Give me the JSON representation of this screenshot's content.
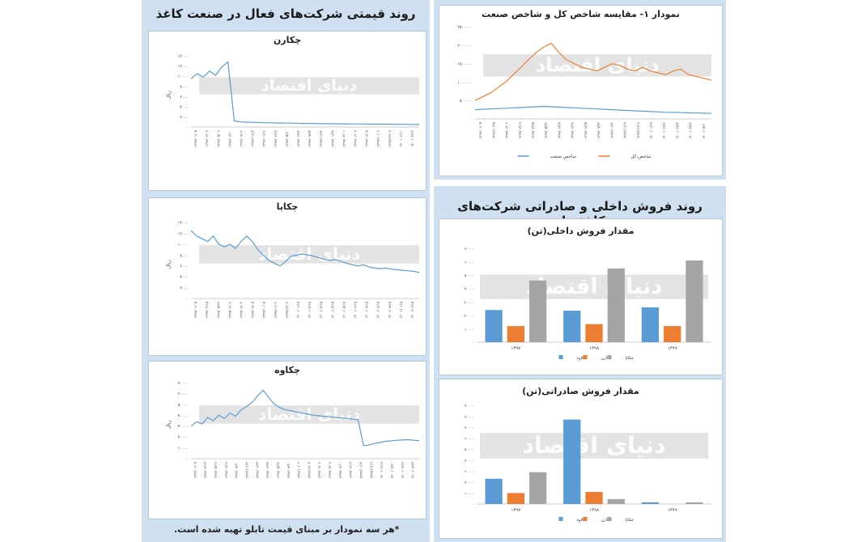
{
  "left_panel": {
    "title": "روند قیمتی شرکت‌های فعال در صنعت کاغذ",
    "footnote": "*هر سه نمودار بر مبنای قیمت تابلو تهیه شده است."
  },
  "right_top": {
    "title": "نمودار ۱- مقایسه شاخص کل و شاخص صنعت"
  },
  "right_bottom": {
    "title": "روند فروش داخلی و صادراتی شرکت‌های کاغذساز"
  },
  "watermark": "دنیای اقتصاد",
  "colors": {
    "blue": "#5b9bd5",
    "orange": "#ed7d31",
    "gray": "#a5a5a5",
    "panel": "#cfe0f1"
  },
  "chart_data": [
    {
      "id": "chekaran",
      "type": "line",
      "title": "چکارن",
      "ylabel": "ریال",
      "ylim": [
        0,
        14000
      ],
      "yticks": [
        "۰",
        "۲۰۰۰",
        "۴۰۰۰",
        "۶۰۰۰",
        "۸۰۰۰",
        "۱۰۰۰۰",
        "۱۲۰۰۰",
        "۱۴۰۰۰"
      ],
      "xticks": [
        "۱۳۹۷/۰۱/۰۵",
        "۱۳۹۷/۰۳/۰۶",
        "۱۳۹۷/۰۵/۰۸",
        "۱۳۹۷/۰۷/۱۰",
        "۱۳۹۷/۰۹/۱۲",
        "۱۳۹۷/۱۱/۱۴",
        "۱۳۹۸/۰۱/۱۶",
        "۱۳۹۸/۰۳/۱۸",
        "۱۳۹۸/۰۵/۲۰",
        "۱۳۹۸/۰۷/۲۲",
        "۱۳۹۸/۰۹/۲۴",
        "۱۳۹۸/۱۱/۲۶",
        "۱۳۹۹/۰۱/۲۸",
        "۱۳۹۹/۰۴/۰۱",
        "۱۳۹۹/۰۶/۰۳",
        "۱۳۹۹/۰۸/۰۵",
        "۱۳۹۹/۱۰/۰۷",
        "۱۳۹۹/۱۲/۰۹",
        "۱۴۰۰/۰۲/۱۱",
        "۱۴۰۰/۰۴/۱۳"
      ],
      "series": [
        {
          "color": "#5b9bd5",
          "values": [
            9500,
            10500,
            9800,
            11000,
            10200,
            11800,
            12800,
            1200,
            1000,
            950,
            900,
            880,
            850,
            820,
            800,
            780,
            760,
            740,
            720,
            700,
            680,
            660,
            650,
            640,
            630,
            620,
            610,
            600,
            590,
            580,
            570,
            560,
            550,
            540,
            530,
            520,
            510,
            500
          ]
        }
      ]
    },
    {
      "id": "chekapa",
      "type": "line",
      "title": "چکاپا",
      "ylabel": "ریال",
      "ylim": [
        0,
        14000
      ],
      "yticks": [
        "۰",
        "۲۰۰۰",
        "۴۰۰۰",
        "۶۰۰۰",
        "۸۰۰۰",
        "۱۰۰۰۰",
        "۱۲۰۰۰",
        "۱۴۰۰۰"
      ],
      "xticks": [
        "۱۳۹۹/۰۱/۰۵",
        "۱۳۹۹/۰۴/۱۵",
        "۱۳۹۹/۰۵/۲۳",
        "۱۳۹۹/۰۷/۰۲",
        "۱۳۹۹/۰۸/۰۴",
        "۱۳۹۹/۰۹/۰۵",
        "۱۳۹۹/۱۰/۰۵",
        "۱۳۹۹/۱۱/۰۶",
        "۱۳۹۹/۱۲/۰۶",
        "۱۴۰۰/۰۱/۱۵",
        "۱۴۰۰/۰۲/۱۵",
        "۱۴۰۰/۰۳/۱۵",
        "۱۴۰۰/۰۴/۱۵",
        "۱۴۰۰/۰۵/۱۵",
        "۱۴۰۰/۰۶/۱۵",
        "۱۴۰۰/۰۷/۱۵",
        "۱۴۰۰/۰۸/۱۵",
        "۱۴۰۰/۰۹/۱۵",
        "۱۴۰۰/۱۰/۱۵",
        "۱۴۰۰/۱۱/۱۵"
      ],
      "series": [
        {
          "color": "#5b9bd5",
          "values": [
            12500,
            11500,
            11000,
            10500,
            11500,
            10000,
            9500,
            10000,
            9200,
            10500,
            11500,
            10500,
            9000,
            8000,
            7000,
            6500,
            6000,
            6800,
            7800,
            8000,
            8200,
            8000,
            7800,
            7500,
            7200,
            7000,
            7200,
            6800,
            6500,
            6200,
            6000,
            6200,
            5800,
            5600,
            5500,
            5600,
            5400,
            5300,
            5200,
            5100,
            5000,
            4800
          ]
        }
      ]
    },
    {
      "id": "chekave",
      "type": "line",
      "title": "چکاوه",
      "ylabel": "ریال",
      "ylim": [
        0,
        70000
      ],
      "yticks": [
        "۰",
        "۱۰۰۰۰",
        "۲۰۰۰۰",
        "۳۰۰۰۰",
        "۴۰۰۰۰",
        "۵۰۰۰۰",
        "۶۰۰۰۰",
        "۷۰۰۰۰"
      ],
      "xticks": [
        "۱۳۹۷/۰۱/۰۵",
        "۱۳۹۷/۰۳/۱۴",
        "۱۳۹۷/۰۵/۱۶",
        "۱۳۹۷/۰۷/۱۸",
        "۱۳۹۷/۰۹/۲۰",
        "۱۳۹۷/۱۱/۲۲",
        "۱۳۹۸/۰۱/۲۴",
        "۱۳۹۸/۰۳/۲۶",
        "۱۳۹۸/۰۵/۲۸",
        "۱۳۹۸/۰۷/۳۰",
        "۱۳۹۸/۱۰/۰۲",
        "۱۳۹۸/۱۲/۰۴",
        "۱۳۹۹/۰۲/۰۶",
        "۱۳۹۹/۰۴/۰۸",
        "۱۳۹۹/۰۶/۱۰",
        "۱۳۹۹/۰۸/۱۲",
        "۱۳۹۹/۱۰/۱۴",
        "۱۳۹۹/۱۲/۱۶",
        "۱۴۰۰/۰۲/۱۸",
        "۱۴۰۰/۰۴/۲۰",
        "۱۴۰۰/۰۶/۲۲",
        "۱۴۰۰/۰۸/۲۴"
      ],
      "series": [
        {
          "color": "#5b9bd5",
          "values": [
            30000,
            34000,
            32000,
            38000,
            35000,
            40000,
            37000,
            42000,
            39000,
            45000,
            48000,
            52000,
            58000,
            63000,
            56000,
            50000,
            47000,
            45000,
            44000,
            43000,
            42000,
            41000,
            40000,
            39500,
            39000,
            38500,
            38000,
            37500,
            37000,
            36500,
            36000,
            12000,
            12500,
            14000,
            15000,
            16000,
            16500,
            17000,
            17200,
            17500,
            17000,
            16500
          ]
        }
      ]
    },
    {
      "id": "index-compare",
      "type": "line",
      "title": "نمودار ۱- مقایسه شاخص کل و شاخص صنعت",
      "ylim": [
        0,
        2500000
      ],
      "yticks": [
        "۰",
        "۵۰۰۰۰۰",
        "۱۰۰۰۰۰۰",
        "۱۵۰۰۰۰۰",
        "۲۰۰۰۰۰۰",
        "۲۵۰۰۰۰۰"
      ],
      "xticks": [
        "۱۳۹۸/۰۱/۰۵",
        "۱۳۹۸/۱۰/۲۵",
        "۱۳۹۹/۰۲/۰۲",
        "۱۳۹۹/۰۳/۱۹",
        "۱۳۹۹/۰۴/۲۵",
        "۱۳۹۹/۰۵/۲۲",
        "۱۳۹۹/۰۶/۲۹",
        "۱۳۹۹/۰۷/۲۷",
        "۱۳۹۹/۰۸/۲۵",
        "۱۳۹۹/۰۹/۲۳",
        "۱۳۹۹/۱۰/۲۲",
        "۱۳۹۹/۱۱/۱۹",
        "۱۳۹۹/۱۲/۱۸",
        "۱۴۰۰/۰۱/۲۹",
        "۱۴۰۰/۰۲/۲۷",
        "۱۴۰۰/۰۳/۲۴",
        "۱۴۰۰/۰۴/۲۲",
        "۱۴۰۰/۰۵/۲۰"
      ],
      "legend": [
        "شاخص صنعت",
        "شاخص کل"
      ],
      "series": [
        {
          "name": "شاخص صنعت",
          "color": "#5b9bd5",
          "values": [
            250000,
            260000,
            270000,
            280000,
            290000,
            300000,
            310000,
            320000,
            330000,
            340000,
            330000,
            320000,
            310000,
            300000,
            290000,
            280000,
            270000,
            260000,
            250000,
            240000,
            230000,
            220000,
            210000,
            200000,
            190000,
            180000,
            175000,
            170000,
            165000,
            160000,
            155000,
            150000
          ]
        },
        {
          "name": "شاخص کل",
          "color": "#ed7d31",
          "values": [
            500000,
            600000,
            700000,
            850000,
            1000000,
            1200000,
            1400000,
            1600000,
            1800000,
            1950000,
            2050000,
            1800000,
            1600000,
            1500000,
            1400000,
            1350000,
            1300000,
            1400000,
            1500000,
            1450000,
            1350000,
            1300000,
            1400000,
            1300000,
            1250000,
            1200000,
            1300000,
            1350000,
            1200000,
            1150000,
            1100000,
            1050000
          ]
        }
      ]
    },
    {
      "id": "domestic-sales",
      "type": "bar",
      "title": "مقدار فروش داخلی(تن)",
      "categories": [
        "۱۳۹۷",
        "۱۳۹۸",
        "۱۳۹۹"
      ],
      "ylim": [
        0,
        70000
      ],
      "yticks": [
        "۰",
        "۱۰۰۰۰",
        "۲۰۰۰۰",
        "۳۰۰۰۰",
        "۴۰۰۰۰",
        "۵۰۰۰۰",
        "۶۰۰۰۰",
        "۷۰۰۰۰"
      ],
      "series": [
        {
          "name": "چکاوه",
          "color": "#5b9bd5",
          "values": [
            24000,
            23500,
            26000
          ]
        },
        {
          "name": "چکارن",
          "color": "#ed7d31",
          "values": [
            12000,
            13500,
            12000
          ]
        },
        {
          "name": "چکاپا",
          "color": "#a5a5a5",
          "values": [
            46000,
            55000,
            61000
          ]
        }
      ]
    },
    {
      "id": "export-sales",
      "type": "bar",
      "title": "مقدار فروش صادراتی(تن)",
      "categories": [
        "۱۳۹۷",
        "۱۳۹۸",
        "۱۳۹۹"
      ],
      "ylim": [
        0,
        90000
      ],
      "yticks": [
        "۰",
        "۱۰۰۰۰",
        "۲۰۰۰۰",
        "۳۰۰۰۰",
        "۴۰۰۰۰",
        "۵۰۰۰۰",
        "۶۰۰۰۰",
        "۷۰۰۰۰",
        "۸۰۰۰۰",
        "۹۰۰۰۰"
      ],
      "series": [
        {
          "name": "چکاوه",
          "color": "#5b9bd5",
          "values": [
            23000,
            77000,
            1500
          ]
        },
        {
          "name": "چکارن",
          "color": "#ed7d31",
          "values": [
            10000,
            11000,
            0
          ]
        },
        {
          "name": "چکاپا",
          "color": "#a5a5a5",
          "values": [
            29000,
            4500,
            1500
          ]
        }
      ]
    }
  ]
}
